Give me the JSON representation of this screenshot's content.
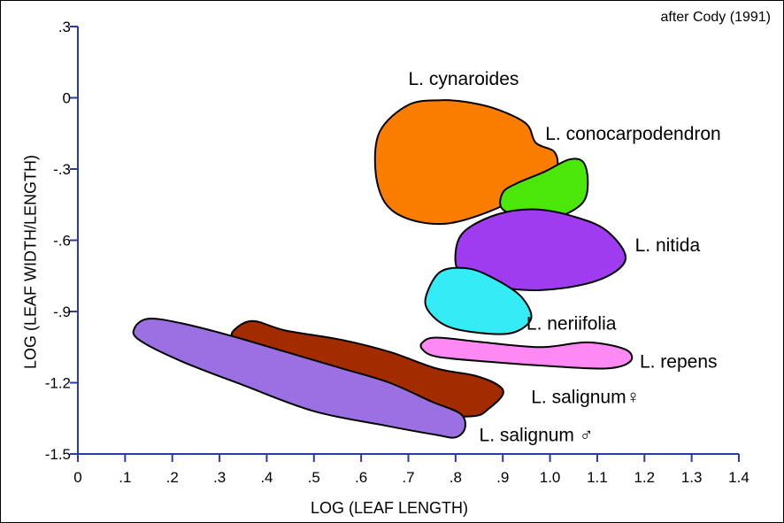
{
  "chart_data": {
    "type": "area",
    "attribution": "after Cody (1991)",
    "xlabel": "LOG (LEAF LENGTH)",
    "ylabel": "LOG (LEAF WIDTH/LENGTH)",
    "xlim": [
      0,
      1.4
    ],
    "ylim": [
      -1.5,
      0.3
    ],
    "xticks": [
      "0",
      ".1",
      ".2",
      ".3",
      ".4",
      ".5",
      ".6",
      ".7",
      ".8",
      ".9",
      "1.0",
      "1.1",
      "1.2",
      "1.3",
      "1.4"
    ],
    "yticks": [
      ".3",
      "0",
      "-.3",
      "-.6",
      "-.9",
      "-1.2",
      "-1.5"
    ],
    "grid": false,
    "series": [
      {
        "name": "L. cynaroides",
        "color": "#fb7d00",
        "label_at": [
          0.7,
          0.08
        ],
        "points": [
          [
            0.63,
            -0.3
          ],
          [
            0.64,
            -0.14
          ],
          [
            0.7,
            -0.03
          ],
          [
            0.77,
            -0.01
          ],
          [
            0.83,
            -0.02
          ],
          [
            0.89,
            -0.05
          ],
          [
            0.95,
            -0.11
          ],
          [
            0.97,
            -0.19
          ],
          [
            1.01,
            -0.23
          ],
          [
            1.01,
            -0.31
          ],
          [
            0.95,
            -0.4
          ],
          [
            0.87,
            -0.48
          ],
          [
            0.78,
            -0.53
          ],
          [
            0.7,
            -0.51
          ],
          [
            0.65,
            -0.44
          ]
        ]
      },
      {
        "name": "L. conocarpodendron",
        "color": "#4ce70a",
        "label_at": [
          0.99,
          -0.15
        ],
        "points": [
          [
            0.9,
            -0.4
          ],
          [
            0.93,
            -0.36
          ],
          [
            0.99,
            -0.31
          ],
          [
            1.04,
            -0.26
          ],
          [
            1.07,
            -0.27
          ],
          [
            1.08,
            -0.35
          ],
          [
            1.07,
            -0.44
          ],
          [
            1.02,
            -0.5
          ],
          [
            0.96,
            -0.51
          ],
          [
            0.9,
            -0.47
          ]
        ]
      },
      {
        "name": "L. nitida",
        "color": "#9f3cef",
        "label_at": [
          1.18,
          -0.62
        ],
        "points": [
          [
            0.8,
            -0.65
          ],
          [
            0.82,
            -0.56
          ],
          [
            0.89,
            -0.49
          ],
          [
            0.97,
            -0.47
          ],
          [
            1.05,
            -0.5
          ],
          [
            1.12,
            -0.56
          ],
          [
            1.16,
            -0.68
          ],
          [
            1.1,
            -0.77
          ],
          [
            0.98,
            -0.81
          ],
          [
            0.87,
            -0.79
          ],
          [
            0.81,
            -0.74
          ]
        ]
      },
      {
        "name": "L. neriifolia",
        "color": "#34ecf6",
        "label_at": [
          0.95,
          -0.95
        ],
        "points": [
          [
            0.74,
            -0.82
          ],
          [
            0.77,
            -0.73
          ],
          [
            0.83,
            -0.72
          ],
          [
            0.89,
            -0.77
          ],
          [
            0.94,
            -0.84
          ],
          [
            0.96,
            -0.93
          ],
          [
            0.92,
            -0.99
          ],
          [
            0.85,
            -0.99
          ],
          [
            0.78,
            -0.96
          ],
          [
            0.74,
            -0.89
          ]
        ]
      },
      {
        "name": "L. repens",
        "color": "#fe88f4",
        "label_at": [
          1.19,
          -1.11
        ],
        "points": [
          [
            0.73,
            -1.03
          ],
          [
            0.76,
            -1.01
          ],
          [
            0.86,
            -1.03
          ],
          [
            0.98,
            -1.05
          ],
          [
            1.08,
            -1.03
          ],
          [
            1.16,
            -1.06
          ],
          [
            1.17,
            -1.11
          ],
          [
            1.12,
            -1.14
          ],
          [
            1.0,
            -1.13
          ],
          [
            0.86,
            -1.11
          ],
          [
            0.76,
            -1.09
          ],
          [
            0.73,
            -1.06
          ]
        ]
      },
      {
        "name": "L. salignum♀",
        "color": "#a32b00",
        "label_at": [
          0.96,
          -1.26
        ],
        "points": [
          [
            0.33,
            -0.98
          ],
          [
            0.37,
            -0.94
          ],
          [
            0.44,
            -0.98
          ],
          [
            0.56,
            -1.02
          ],
          [
            0.66,
            -1.07
          ],
          [
            0.76,
            -1.14
          ],
          [
            0.84,
            -1.17
          ],
          [
            0.89,
            -1.21
          ],
          [
            0.9,
            -1.25
          ],
          [
            0.87,
            -1.31
          ],
          [
            0.84,
            -1.34
          ],
          [
            0.76,
            -1.33
          ],
          [
            0.6,
            -1.24
          ],
          [
            0.46,
            -1.13
          ],
          [
            0.36,
            -1.06
          ],
          [
            0.33,
            -1.02
          ]
        ]
      },
      {
        "name": "L. salignum ♂",
        "color": "#9a70e2",
        "label_at": [
          0.85,
          -1.42
        ],
        "points": [
          [
            0.12,
            -0.97
          ],
          [
            0.15,
            -0.93
          ],
          [
            0.22,
            -0.95
          ],
          [
            0.32,
            -1.0
          ],
          [
            0.44,
            -1.07
          ],
          [
            0.56,
            -1.14
          ],
          [
            0.66,
            -1.2
          ],
          [
            0.75,
            -1.28
          ],
          [
            0.81,
            -1.33
          ],
          [
            0.82,
            -1.39
          ],
          [
            0.8,
            -1.43
          ],
          [
            0.76,
            -1.42
          ],
          [
            0.65,
            -1.38
          ],
          [
            0.5,
            -1.32
          ],
          [
            0.35,
            -1.21
          ],
          [
            0.22,
            -1.11
          ],
          [
            0.13,
            -1.02
          ]
        ]
      }
    ]
  }
}
